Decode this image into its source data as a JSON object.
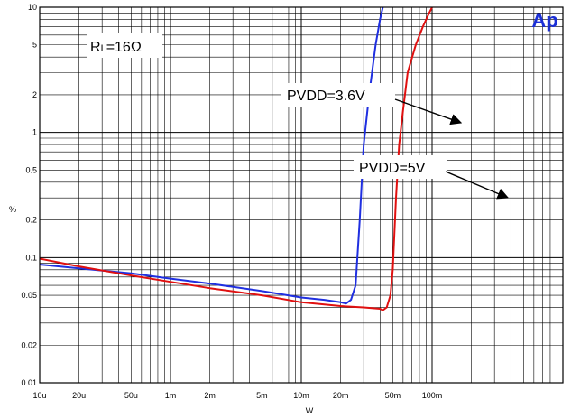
{
  "chart_data": {
    "type": "line",
    "xscale": "log",
    "yscale": "log",
    "xlim": [
      1e-05,
      0.1
    ],
    "ylim": [
      0.01,
      10
    ],
    "xlabel": "W",
    "ylabel": "%",
    "grid": true,
    "x_ticks": [
      {
        "value": 1e-05,
        "label": "10u"
      },
      {
        "value": 2e-05,
        "label": "20u"
      },
      {
        "value": 5e-05,
        "label": "50u"
      },
      {
        "value": 0.0001,
        "label": "1m"
      },
      {
        "value": 0.0002,
        "label": "2m"
      },
      {
        "value": 0.0005,
        "label": "5m"
      },
      {
        "value": 0.001,
        "label": "10m"
      },
      {
        "value": 0.002,
        "label": "20m"
      },
      {
        "value": 0.005,
        "label": "50m"
      },
      {
        "value": 0.01,
        "label": "100m"
      }
    ],
    "y_ticks": [
      {
        "value": 0.01,
        "label": "0.01"
      },
      {
        "value": 0.02,
        "label": "0.02"
      },
      {
        "value": 0.05,
        "label": "0.05"
      },
      {
        "value": 0.1,
        "label": "0.1"
      },
      {
        "value": 0.2,
        "label": "0.2"
      },
      {
        "value": 0.5,
        "label": "0.5"
      },
      {
        "value": 1,
        "label": "1"
      },
      {
        "value": 2,
        "label": "2"
      },
      {
        "value": 5,
        "label": "5"
      },
      {
        "value": 10,
        "label": "10"
      }
    ],
    "series": [
      {
        "name": "PVDD=3.6V",
        "color": "#1f2fe0",
        "points": [
          [
            1e-05,
            0.088
          ],
          [
            2e-05,
            0.082
          ],
          [
            5e-05,
            0.075
          ],
          [
            0.0001,
            0.068
          ],
          [
            0.0002,
            0.062
          ],
          [
            0.0005,
            0.054
          ],
          [
            0.001,
            0.048
          ],
          [
            0.0015,
            0.046
          ],
          [
            0.002,
            0.044
          ],
          [
            0.0022,
            0.043
          ],
          [
            0.0024,
            0.046
          ],
          [
            0.0026,
            0.06
          ],
          [
            0.0028,
            0.2
          ],
          [
            0.003,
            0.8
          ],
          [
            0.0033,
            2
          ],
          [
            0.0037,
            5
          ],
          [
            0.004,
            8
          ],
          [
            0.0042,
            10
          ]
        ]
      },
      {
        "name": "PVDD=5V",
        "color": "#e01010",
        "points": [
          [
            1e-05,
            0.098
          ],
          [
            2e-05,
            0.085
          ],
          [
            5e-05,
            0.072
          ],
          [
            0.0001,
            0.064
          ],
          [
            0.0002,
            0.057
          ],
          [
            0.0005,
            0.05
          ],
          [
            0.001,
            0.044
          ],
          [
            0.002,
            0.041
          ],
          [
            0.003,
            0.04
          ],
          [
            0.004,
            0.039
          ],
          [
            0.0042,
            0.038
          ],
          [
            0.0045,
            0.04
          ],
          [
            0.0048,
            0.05
          ],
          [
            0.005,
            0.08
          ],
          [
            0.0053,
            0.3
          ],
          [
            0.0056,
            0.8
          ],
          [
            0.006,
            1.5
          ],
          [
            0.0065,
            3
          ],
          [
            0.0075,
            5
          ],
          [
            0.0085,
            7
          ],
          [
            0.0095,
            9
          ],
          [
            0.01,
            10
          ]
        ]
      }
    ],
    "annotations": [
      {
        "id": "rl",
        "label_main": "R",
        "label_sub": "L",
        "label_rest": "=16Ω"
      },
      {
        "id": "pvdd36",
        "text": "PVDD=3.6V",
        "arrow_to": [
          0.003,
          1.0
        ]
      },
      {
        "id": "pvdd5",
        "text": "PVDD=5V",
        "arrow_to": [
          0.0055,
          0.75
        ]
      }
    ],
    "logo_text": "Ap"
  }
}
